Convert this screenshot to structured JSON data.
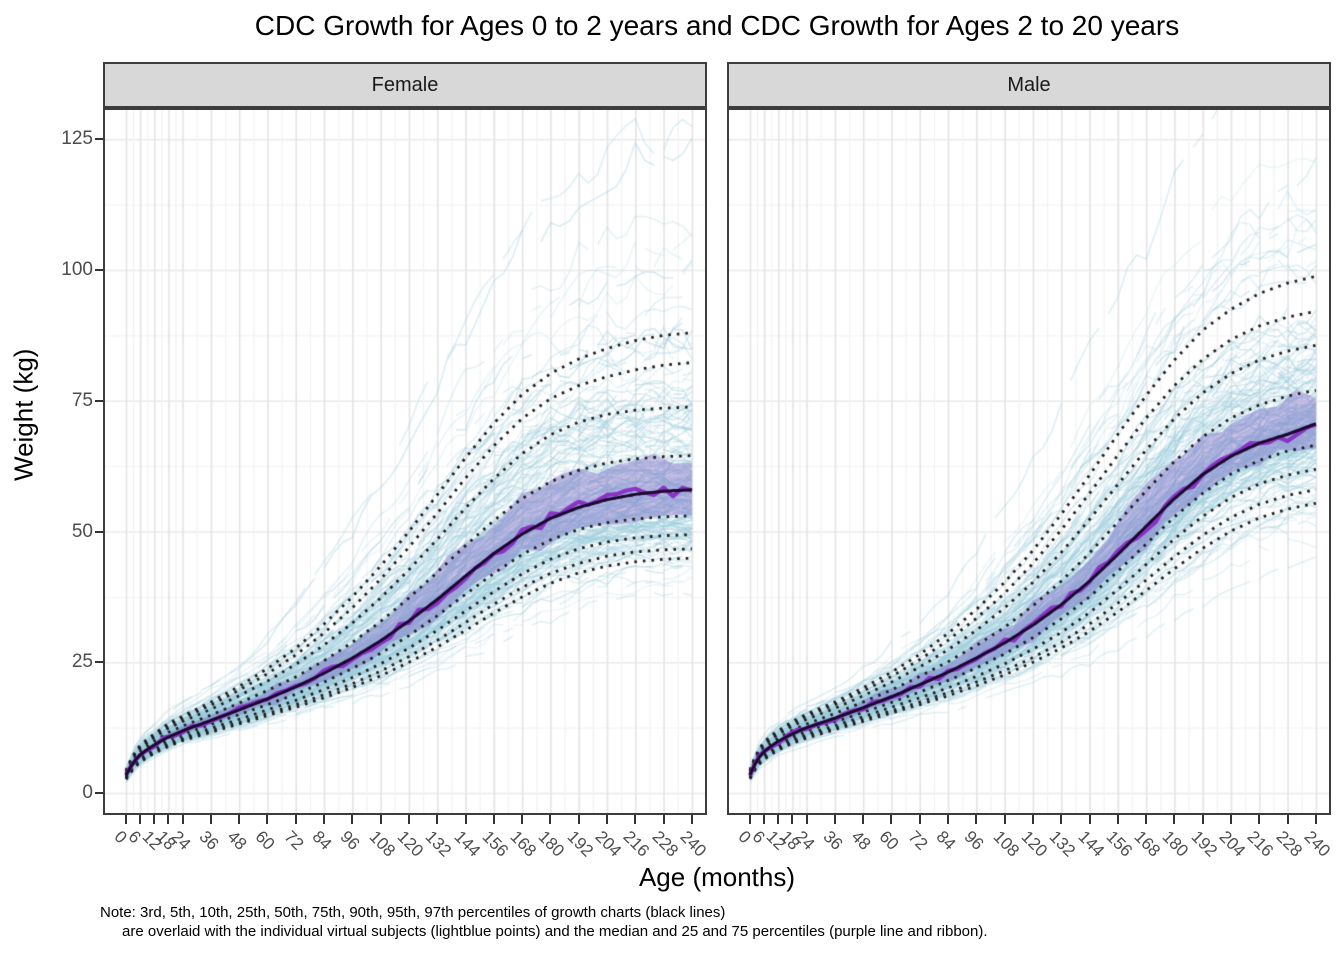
{
  "title": "CDC Growth for Ages 0 to 2 years and CDC Growth for Ages 2 to 20 years",
  "facets": [
    {
      "label": "Female"
    },
    {
      "label": "Male"
    }
  ],
  "x_axis": {
    "title": "Age (months)",
    "ticks": [
      0,
      6,
      12,
      18,
      24,
      36,
      48,
      60,
      72,
      84,
      96,
      108,
      120,
      132,
      144,
      156,
      168,
      180,
      192,
      204,
      216,
      228,
      240
    ]
  },
  "y_axis": {
    "title": "Weight (kg)",
    "ticks": [
      0,
      25,
      50,
      75,
      100,
      125
    ]
  },
  "note": {
    "line1": "Note: 3rd, 5th, 10th, 25th, 50th, 75th, 90th, 95th, 97th percentiles of growth charts (black lines)",
    "line2": "are overlaid with the individual virtual subjects (lightblue points) and the median and 25 and 75 percentiles (purple line and ribbon)."
  },
  "colors": {
    "strip_bg": "#d8d8d8",
    "panel_border": "#3d3d3d",
    "grid_major_v": "#e4e4e4",
    "grid_minor_v": "#f2f2f2",
    "grid_major_h": "#ebebeb",
    "grid_minor_h": "#f5f5f5",
    "percentile_dotted": "#1f1f1f",
    "subject_lightblue": "#9dcede",
    "ribbon_purple": "rgba(126,99,198,0.40)",
    "median_jagged_purple": "rgba(137,44,196,0.95)",
    "median_smooth_dark": "#1a0830",
    "axis_text": "#4d4d4d",
    "tick_mark": "#333333"
  },
  "chart_data": {
    "type": "line",
    "title": "CDC Growth for Ages 0 to 2 years and CDC Growth for Ages 2 to 20 years",
    "xlabel": "Age (months)",
    "ylabel": "Weight (kg)",
    "xlim": [
      0,
      240
    ],
    "ylim": [
      0,
      131
    ],
    "x_ticks": [
      0,
      6,
      12,
      18,
      24,
      36,
      48,
      60,
      72,
      84,
      96,
      108,
      120,
      132,
      144,
      156,
      168,
      180,
      192,
      204,
      216,
      228,
      240
    ],
    "y_ticks": [
      0,
      25,
      50,
      75,
      100,
      125
    ],
    "grid": true,
    "legend": "none",
    "percentile_labels": [
      "3rd",
      "5th",
      "10th",
      "25th",
      "50th",
      "75th",
      "90th",
      "95th",
      "97th"
    ],
    "overlays": {
      "black_dotted_lines": "3rd, 5th, 10th, 25th, 50th, 75th, 90th, 95th, 97th percentiles of CDC growth charts",
      "lightblue_points": "individual virtual subjects",
      "purple_ribbon": "25 to 75 percentiles of virtual subjects",
      "purple_line": "median of virtual subjects"
    },
    "ages": [
      0,
      3,
      6,
      9,
      12,
      18,
      24,
      36,
      48,
      60,
      72,
      84,
      96,
      108,
      120,
      132,
      144,
      156,
      168,
      180,
      192,
      204,
      216,
      228,
      240
    ],
    "facets": [
      {
        "name": "Female",
        "percentiles": {
          "p3": [
            2.6,
            4.6,
            5.9,
            6.8,
            7.6,
            8.9,
            10.0,
            11.6,
            13.2,
            14.8,
            16.4,
            18.2,
            20.2,
            22.4,
            25.0,
            27.9,
            31.1,
            34.4,
            37.5,
            40.1,
            42.1,
            43.4,
            44.2,
            44.7,
            44.9
          ],
          "p5": [
            2.8,
            4.8,
            6.1,
            7.0,
            7.8,
            9.1,
            10.2,
            11.9,
            13.5,
            15.2,
            16.9,
            18.8,
            20.9,
            23.3,
            26.1,
            29.2,
            32.6,
            36.1,
            39.3,
            42.0,
            43.9,
            45.3,
            46.1,
            46.5,
            46.7
          ],
          "p10": [
            2.9,
            5.0,
            6.4,
            7.3,
            8.1,
            9.5,
            10.6,
            12.4,
            14.1,
            15.9,
            17.7,
            19.8,
            22.1,
            24.7,
            27.7,
            31.1,
            34.8,
            38.5,
            41.9,
            44.7,
            46.7,
            48.0,
            48.8,
            49.2,
            49.4
          ],
          "p25": [
            3.1,
            5.4,
            6.8,
            7.8,
            8.6,
            10.1,
            11.2,
            13.1,
            15.0,
            16.9,
            18.9,
            21.2,
            23.8,
            26.7,
            30.1,
            33.9,
            38.0,
            42.0,
            45.6,
            48.4,
            50.4,
            51.7,
            52.4,
            52.8,
            53.0
          ],
          "p50": [
            3.4,
            5.8,
            7.3,
            8.3,
            9.2,
            10.7,
            11.9,
            13.9,
            15.9,
            18.0,
            20.3,
            22.9,
            25.8,
            29.1,
            32.9,
            37.0,
            41.5,
            45.8,
            49.5,
            52.5,
            54.6,
            56.1,
            57.1,
            57.7,
            58.0
          ],
          "p75": [
            3.7,
            6.3,
            7.9,
            9.0,
            9.9,
            11.6,
            12.8,
            14.9,
            17.2,
            19.6,
            22.2,
            25.3,
            28.8,
            32.8,
            37.3,
            42.2,
            47.3,
            52.1,
            56.3,
            59.5,
            61.7,
            63.1,
            63.9,
            64.3,
            64.5
          ],
          "p90": [
            4.0,
            6.8,
            8.5,
            9.6,
            10.6,
            12.4,
            13.7,
            16.0,
            18.6,
            21.4,
            24.6,
            28.3,
            32.5,
            37.3,
            42.7,
            48.5,
            54.5,
            60.1,
            64.9,
            68.5,
            70.9,
            72.4,
            73.2,
            73.6,
            73.8
          ],
          "p95": [
            4.2,
            7.1,
            8.9,
            10.0,
            11.0,
            12.9,
            14.3,
            16.8,
            19.7,
            22.8,
            26.4,
            30.6,
            35.4,
            40.9,
            47.0,
            53.5,
            60.2,
            66.4,
            71.6,
            75.4,
            77.9,
            79.6,
            80.9,
            81.8,
            82.3
          ],
          "p97": [
            4.3,
            7.3,
            9.1,
            10.3,
            11.3,
            13.3,
            14.7,
            17.4,
            20.4,
            23.8,
            27.7,
            32.3,
            37.5,
            43.4,
            50.0,
            57.0,
            64.1,
            70.7,
            76.2,
            80.2,
            83.0,
            85.0,
            86.5,
            87.5,
            88.0
          ]
        }
      },
      {
        "name": "Male",
        "percentiles": {
          "p3": [
            2.7,
            5.1,
            6.4,
            7.4,
            8.2,
            9.5,
            10.5,
            12.1,
            13.7,
            15.3,
            16.9,
            18.6,
            20.5,
            22.6,
            25.0,
            27.7,
            30.9,
            34.6,
            38.7,
            42.9,
            46.8,
            50.1,
            52.6,
            54.3,
            55.4
          ],
          "p5": [
            2.9,
            5.3,
            6.7,
            7.7,
            8.4,
            9.8,
            10.8,
            12.4,
            14.1,
            15.7,
            17.4,
            19.2,
            21.2,
            23.4,
            25.9,
            28.8,
            32.3,
            36.3,
            40.7,
            45.2,
            49.3,
            52.7,
            55.2,
            56.9,
            58.0
          ],
          "p10": [
            3.0,
            5.6,
            7.0,
            8.0,
            8.8,
            10.2,
            11.2,
            12.9,
            14.6,
            16.4,
            18.2,
            20.1,
            22.3,
            24.7,
            27.5,
            30.7,
            34.5,
            38.9,
            43.7,
            48.6,
            52.9,
            56.5,
            59.1,
            60.8,
            61.9
          ],
          "p25": [
            3.2,
            6.0,
            7.4,
            8.5,
            9.3,
            10.7,
            11.8,
            13.6,
            15.4,
            17.3,
            19.3,
            21.5,
            23.9,
            26.6,
            29.7,
            33.3,
            37.5,
            42.4,
            47.6,
            52.8,
            57.3,
            61.0,
            63.6,
            65.4,
            66.5
          ],
          "p50": [
            3.5,
            6.4,
            7.9,
            9.0,
            9.9,
            11.3,
            12.5,
            14.3,
            16.3,
            18.4,
            20.7,
            23.1,
            25.8,
            28.7,
            32.1,
            36.0,
            40.5,
            45.6,
            51.0,
            56.3,
            60.9,
            64.4,
            66.9,
            68.6,
            70.6
          ],
          "p75": [
            3.8,
            6.9,
            8.5,
            9.6,
            10.5,
            12.0,
            13.2,
            15.2,
            17.4,
            19.7,
            22.3,
            25.1,
            28.2,
            31.7,
            35.8,
            40.5,
            45.9,
            51.8,
            57.8,
            63.4,
            68.1,
            71.7,
            74.2,
            75.9,
            77.0
          ],
          "p90": [
            4.1,
            7.4,
            9.1,
            10.3,
            11.2,
            12.8,
            14.1,
            16.2,
            18.6,
            21.2,
            24.1,
            27.4,
            31.1,
            35.4,
            40.3,
            46.0,
            52.3,
            59.0,
            65.6,
            71.6,
            76.5,
            80.2,
            82.8,
            84.5,
            85.6
          ],
          "p95": [
            4.3,
            7.7,
            9.5,
            10.7,
            11.6,
            13.3,
            14.7,
            16.9,
            19.5,
            22.3,
            25.5,
            29.2,
            33.4,
            38.2,
            43.9,
            50.3,
            57.3,
            64.6,
            71.7,
            77.9,
            82.9,
            86.7,
            89.3,
            91.0,
            92.1
          ],
          "p97": [
            4.4,
            7.9,
            9.7,
            11.0,
            11.9,
            13.7,
            15.1,
            17.4,
            20.1,
            23.1,
            26.5,
            30.5,
            35.1,
            40.3,
            46.4,
            53.3,
            60.8,
            68.6,
            76.0,
            82.8,
            88.5,
            92.5,
            95.5,
            97.5,
            98.8
          ]
        }
      }
    ]
  }
}
